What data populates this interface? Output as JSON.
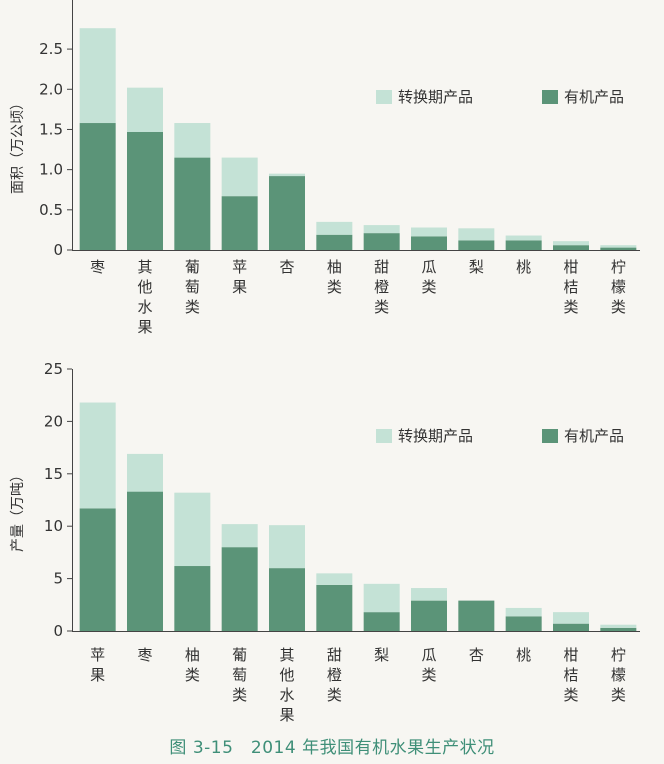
{
  "caption": "图 3-15　2014 年我国有机水果生产状况",
  "colors": {
    "transition": "#c4e2d6",
    "organic": "#5b9478",
    "axis": "#444444"
  },
  "chart_data": [
    {
      "type": "bar",
      "stacked": true,
      "ylabel": "面积（万公顷）",
      "ylim": [
        0,
        2.75
      ],
      "yticks": [
        "0",
        "0.5",
        "1.0",
        "1.5",
        "2.0",
        "2.5"
      ],
      "legend_position": "top-right",
      "categories": [
        "枣",
        "其他水果",
        "葡萄类",
        "苹果",
        "杏",
        "柚类",
        "甜橙类",
        "瓜类",
        "梨",
        "桃",
        "柑桔类",
        "柠檬类"
      ],
      "series": [
        {
          "name": "有机产品",
          "values": [
            1.58,
            1.47,
            1.15,
            0.67,
            0.92,
            0.19,
            0.21,
            0.17,
            0.12,
            0.12,
            0.06,
            0.03
          ]
        },
        {
          "name": "转换期产品",
          "values": [
            1.18,
            0.55,
            0.43,
            0.48,
            0.03,
            0.16,
            0.1,
            0.11,
            0.15,
            0.06,
            0.05,
            0.03
          ]
        }
      ]
    },
    {
      "type": "bar",
      "stacked": true,
      "ylabel": "产量（万吨）",
      "ylim": [
        0,
        25
      ],
      "yticks": [
        "0",
        "5",
        "10",
        "15",
        "20",
        "25"
      ],
      "legend_position": "top-right",
      "categories": [
        "苹果",
        "枣",
        "柚类",
        "葡萄类",
        "其他水果",
        "甜橙类",
        "梨",
        "瓜类",
        "杏",
        "桃",
        "柑桔类",
        "柠檬类"
      ],
      "series": [
        {
          "name": "有机产品",
          "values": [
            11.7,
            13.3,
            6.2,
            8.0,
            6.0,
            4.4,
            1.8,
            2.9,
            2.9,
            1.4,
            0.7,
            0.3
          ]
        },
        {
          "name": "转换期产品",
          "values": [
            10.1,
            3.6,
            7.0,
            2.2,
            4.1,
            1.1,
            2.7,
            1.2,
            0.0,
            0.8,
            1.1,
            0.3
          ]
        }
      ]
    }
  ]
}
